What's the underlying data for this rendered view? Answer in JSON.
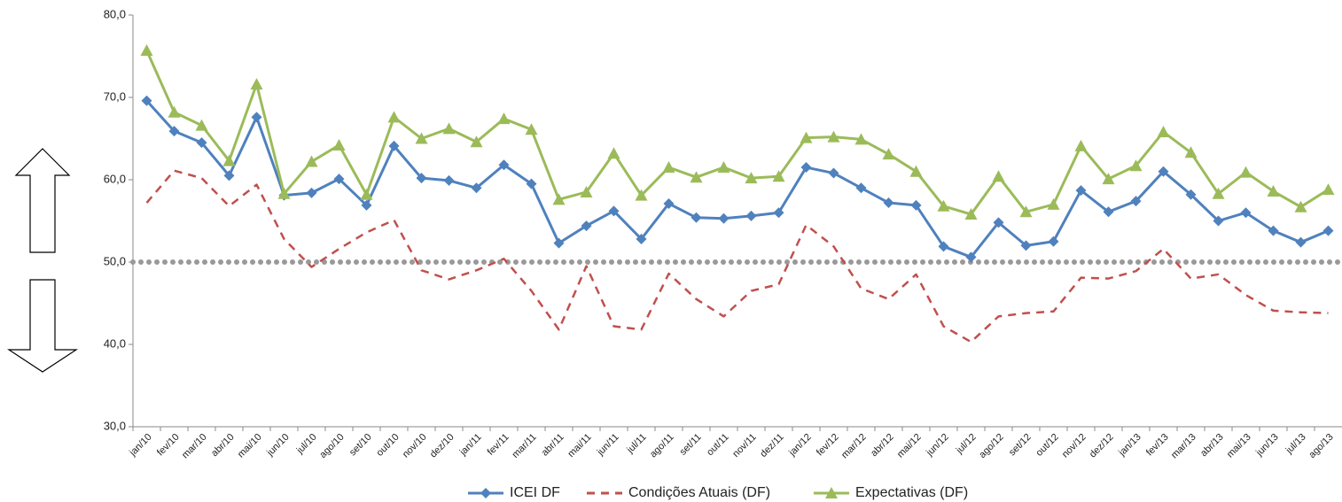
{
  "chart_data": {
    "type": "line",
    "categories": [
      "jan/10",
      "fev/10",
      "mar/10",
      "abr/10",
      "mai/10",
      "jun/10",
      "jul/10",
      "ago/10",
      "set/10",
      "out/10",
      "nov/10",
      "dez/10",
      "jan/11",
      "fev/11",
      "mar/11",
      "abr/11",
      "mai/11",
      "jun/11",
      "jul/11",
      "ago/11",
      "set/11",
      "out/11",
      "nov/11",
      "dez/11",
      "jan/12",
      "fev/12",
      "mar/12",
      "abr/12",
      "mai/12",
      "jun/12",
      "jul/12",
      "ago/12",
      "set/12",
      "out/12",
      "nov/12",
      "dez/12",
      "jan/13",
      "fev/13",
      "mar/13",
      "abr/13",
      "mai/13",
      "jun/13",
      "jul/13",
      "ago/13"
    ],
    "series": [
      {
        "name": "ICEI DF",
        "color": "#4f81bd",
        "marker": "diamond",
        "dashed": false,
        "values": [
          69.6,
          65.9,
          64.5,
          60.5,
          67.6,
          58.1,
          58.4,
          60.1,
          56.9,
          64.1,
          60.2,
          59.9,
          59.0,
          61.8,
          59.5,
          52.3,
          54.4,
          56.2,
          52.8,
          57.1,
          55.4,
          55.3,
          55.6,
          56.0,
          61.5,
          60.8,
          59.0,
          57.2,
          56.9,
          51.9,
          50.6,
          54.8,
          52.0,
          52.5,
          58.7,
          56.1,
          57.4,
          61.0,
          58.2,
          55.0,
          56.0,
          53.8,
          52.4,
          53.8
        ]
      },
      {
        "name": "Condições Atuais (DF)",
        "color": "#c0504d",
        "marker": "none",
        "dashed": true,
        "values": [
          57.2,
          61.1,
          60.2,
          56.8,
          59.4,
          52.8,
          49.4,
          51.6,
          53.6,
          55.1,
          49.0,
          47.9,
          49.0,
          50.4,
          46.5,
          41.8,
          49.5,
          42.2,
          41.8,
          48.6,
          45.5,
          43.4,
          46.5,
          47.3,
          54.5,
          51.9,
          46.8,
          45.5,
          48.5,
          42.2,
          40.3,
          43.4,
          43.8,
          44.0,
          48.1,
          48.0,
          48.9,
          51.6,
          48.0,
          48.5,
          46.0,
          44.1,
          43.9,
          43.8
        ]
      },
      {
        "name": "Expectativas (DF)",
        "color": "#9bbb59",
        "marker": "triangle",
        "dashed": false,
        "values": [
          75.7,
          68.2,
          66.6,
          62.3,
          71.6,
          58.3,
          62.2,
          64.2,
          58.2,
          67.6,
          65.0,
          66.2,
          64.6,
          67.4,
          66.1,
          57.6,
          58.5,
          63.2,
          58.1,
          61.5,
          60.3,
          61.5,
          60.2,
          60.4,
          65.1,
          65.2,
          64.9,
          63.1,
          61.0,
          56.8,
          55.8,
          60.4,
          56.1,
          57.0,
          64.1,
          60.1,
          61.7,
          65.8,
          63.3,
          58.3,
          60.9,
          58.6,
          56.7,
          58.8
        ]
      }
    ],
    "ylim": [
      30,
      80
    ],
    "yticks": [
      {
        "value": 30,
        "label": "30,0"
      },
      {
        "value": 40,
        "label": "40,0"
      },
      {
        "value": 50,
        "label": "50,0"
      },
      {
        "value": 60,
        "label": "60,0"
      },
      {
        "value": 70,
        "label": "70,0"
      },
      {
        "value": 80,
        "label": "80,0"
      }
    ],
    "reference_line": 50,
    "legend": "bottom"
  }
}
